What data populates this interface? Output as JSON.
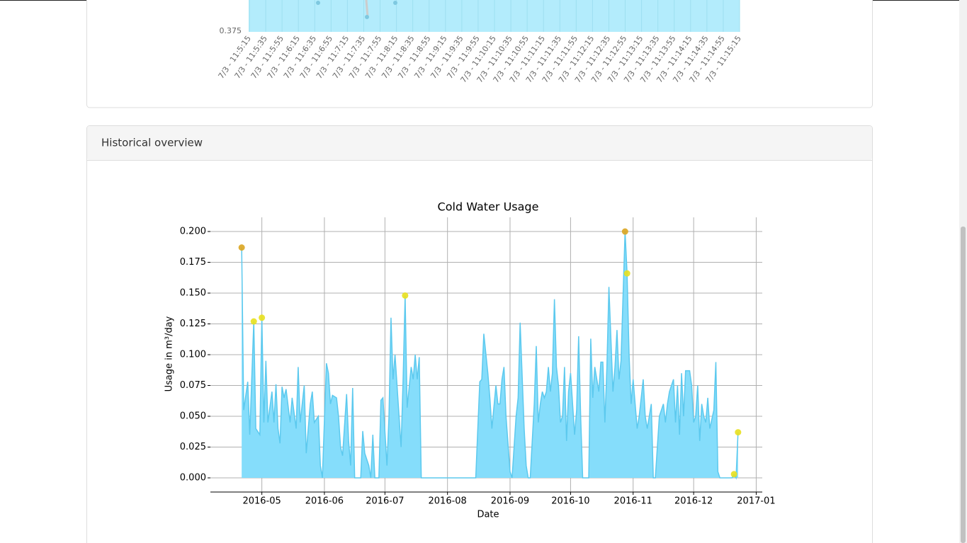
{
  "live_chart": {
    "yticks": [
      0.375
    ],
    "categories": [
      "7/3 - 11:5:15",
      "7/3 - 11:5:35",
      "7/3 - 11:5:55",
      "7/3 - 11:6:15",
      "7/3 - 11:6:35",
      "7/3 - 11:6:55",
      "7/3 - 11:7:15",
      "7/3 - 11:7:35",
      "7/3 - 11:7:55",
      "7/3 - 11:8:15",
      "7/3 - 11:8:35",
      "7/3 - 11:8:55",
      "7/3 - 11:9:15",
      "7/3 - 11:9:35",
      "7/3 - 11:9:55",
      "7/3 - 11:10:15",
      "7/3 - 11:10:35",
      "7/3 - 11:10:55",
      "7/3 - 11:11:15",
      "7/3 - 11:11:35",
      "7/3 - 11:11:55",
      "7/3 - 11:12:15",
      "7/3 - 11:12:35",
      "7/3 - 11:12:55",
      "7/3 - 11:13:15",
      "7/3 - 11:13:35",
      "7/3 - 11:13:55",
      "7/3 - 11:14:15",
      "7/3 - 11:14:35",
      "7/3 - 11:14:55",
      "7/3 - 11:15:15"
    ]
  },
  "panel": {
    "title": "Historical overview"
  },
  "chart_data": {
    "type": "area",
    "title": "Cold Water Usage",
    "x_label": "Date",
    "y_label": "Usage in m³/day",
    "grid": true,
    "xlim": [
      96.5,
      370
    ],
    "ylim": [
      -0.0115,
      0.2115
    ],
    "xticks": [
      {
        "value": 122,
        "label": "2016-05"
      },
      {
        "value": 153,
        "label": "2016-06"
      },
      {
        "value": 183,
        "label": "2016-07"
      },
      {
        "value": 214,
        "label": "2016-08"
      },
      {
        "value": 245,
        "label": "2016-09"
      },
      {
        "value": 275,
        "label": "2016-10"
      },
      {
        "value": 306,
        "label": "2016-11"
      },
      {
        "value": 336,
        "label": "2016-12"
      },
      {
        "value": 367,
        "label": "2017-01"
      }
    ],
    "yticks": [
      {
        "value": 0,
        "label": "0.000"
      },
      0.025,
      {
        "value": 0.05,
        "label": "0.050"
      },
      0.075,
      {
        "value": 0.1,
        "label": "0.100"
      },
      0.125,
      {
        "value": 0.15,
        "label": "0.150"
      },
      0.175,
      {
        "value": 0.2,
        "label": "0.200"
      }
    ],
    "line": {
      "color": "#5cc9ee",
      "fill": "#85ddfb",
      "x": [
        112,
        113,
        115,
        116,
        118,
        119,
        121,
        122,
        123,
        124,
        125,
        127,
        128,
        129,
        130,
        131,
        132,
        133,
        134,
        136,
        137,
        139,
        140,
        141,
        143,
        144,
        146,
        147,
        148,
        150,
        151,
        152,
        154,
        155,
        156,
        157,
        159,
        160,
        161,
        162,
        164,
        165,
        166,
        167,
        168,
        171,
        172,
        173,
        175,
        176,
        177,
        178,
        180,
        181,
        182,
        184,
        185,
        186,
        187,
        188,
        189,
        190,
        191,
        192,
        193,
        194,
        196,
        197,
        198,
        199,
        200,
        201,
        203,
        228,
        230,
        231,
        232,
        234,
        235,
        236,
        238,
        239,
        240,
        241,
        242,
        243,
        245,
        246,
        248,
        249,
        250,
        252,
        253,
        254,
        255,
        257,
        258,
        259,
        260,
        261,
        262,
        263,
        264,
        265,
        266,
        267,
        268,
        269,
        270,
        271,
        272,
        273,
        274,
        275,
        277,
        278,
        279,
        280,
        281,
        284,
        285,
        286,
        287,
        289,
        290,
        291,
        292,
        293,
        294,
        296,
        297,
        298,
        299,
        300,
        302,
        303,
        304,
        305,
        306,
        307,
        308,
        309,
        310,
        311,
        312,
        313,
        315,
        316,
        317,
        318,
        319,
        321,
        322,
        323,
        324,
        326,
        327,
        328,
        329,
        330,
        331,
        332,
        334,
        335,
        336,
        337,
        338,
        339,
        340,
        341,
        342,
        343,
        344,
        346,
        347,
        348,
        349,
        355,
        356,
        357,
        358
      ],
      "values": [
        0.187,
        0.055,
        0.078,
        0.035,
        0.127,
        0.04,
        0.035,
        0.13,
        0.045,
        0.095,
        0.045,
        0.07,
        0.045,
        0.076,
        0.04,
        0.028,
        0.074,
        0.065,
        0.072,
        0.045,
        0.065,
        0.04,
        0.09,
        0.045,
        0.075,
        0.02,
        0.06,
        0.07,
        0.045,
        0.05,
        0.01,
        0,
        0.093,
        0.085,
        0.06,
        0.067,
        0.065,
        0.05,
        0.025,
        0.018,
        0.068,
        0.03,
        0.01,
        0.073,
        0,
        0,
        0.038,
        0.02,
        0.01,
        0,
        0.035,
        0,
        0,
        0.063,
        0.065,
        0.01,
        0.05,
        0.13,
        0.08,
        0.1,
        0.075,
        0.05,
        0.025,
        0.08,
        0.148,
        0.057,
        0.09,
        0.08,
        0.1,
        0.08,
        0.098,
        0,
        0,
        0,
        0.078,
        0.08,
        0.117,
        0.085,
        0.065,
        0.04,
        0.075,
        0.06,
        0.06,
        0.08,
        0.09,
        0.05,
        0.005,
        0,
        0.05,
        0.065,
        0.126,
        0.04,
        0.01,
        0,
        0,
        0.06,
        0.107,
        0.045,
        0.06,
        0.07,
        0.065,
        0.07,
        0.09,
        0.07,
        0.085,
        0.145,
        0.09,
        0.075,
        0.045,
        0.05,
        0.09,
        0.03,
        0.07,
        0.085,
        0.035,
        0.055,
        0.115,
        0.05,
        0,
        0,
        0.113,
        0.065,
        0.09,
        0.07,
        0.094,
        0.094,
        0.045,
        0.09,
        0.155,
        0.07,
        0.09,
        0.12,
        0.08,
        0.095,
        0.2,
        0.166,
        0.1,
        0.06,
        0.08,
        0.06,
        0.04,
        0.05,
        0.065,
        0.08,
        0.05,
        0.04,
        0.06,
        0,
        0,
        0.025,
        0.05,
        0.06,
        0.045,
        0.06,
        0.07,
        0.08,
        0.045,
        0.075,
        0.035,
        0.085,
        0.05,
        0.087,
        0.087,
        0.075,
        0.045,
        0.05,
        0.075,
        0.03,
        0.06,
        0.05,
        0.045,
        0.065,
        0.04,
        0.055,
        0.094,
        0.005,
        0,
        0,
        0.003,
        0,
        0.037
      ]
    },
    "markers": [
      {
        "color": "#daa520",
        "x": [
          112,
          302
        ],
        "values": [
          0.187,
          0.2
        ]
      },
      {
        "color": "#e8e01e",
        "x": [
          118,
          122,
          193,
          303,
          356,
          358
        ],
        "values": [
          0.127,
          0.13,
          0.148,
          0.166,
          0.003,
          0.037
        ]
      }
    ]
  }
}
